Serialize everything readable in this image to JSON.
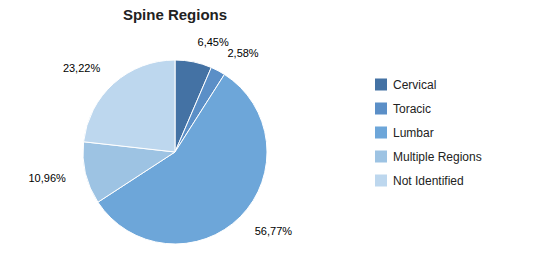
{
  "chart_data": {
    "type": "pie",
    "title": "Spine Regions",
    "categories": [
      "Cervical",
      "Toracic",
      "Lumbar",
      "Multiple Regions",
      "Not Identified"
    ],
    "values": [
      6.45,
      2.58,
      56.77,
      10.96,
      23.22
    ],
    "value_labels": [
      "6,45%",
      "2,58%",
      "56,77%",
      "10,96%",
      "23,22%"
    ],
    "colors": [
      "#4472A4",
      "#5B8FC7",
      "#6DA6D9",
      "#9DC3E3",
      "#BDD7EE"
    ],
    "data_labels": true,
    "legend": "right"
  }
}
